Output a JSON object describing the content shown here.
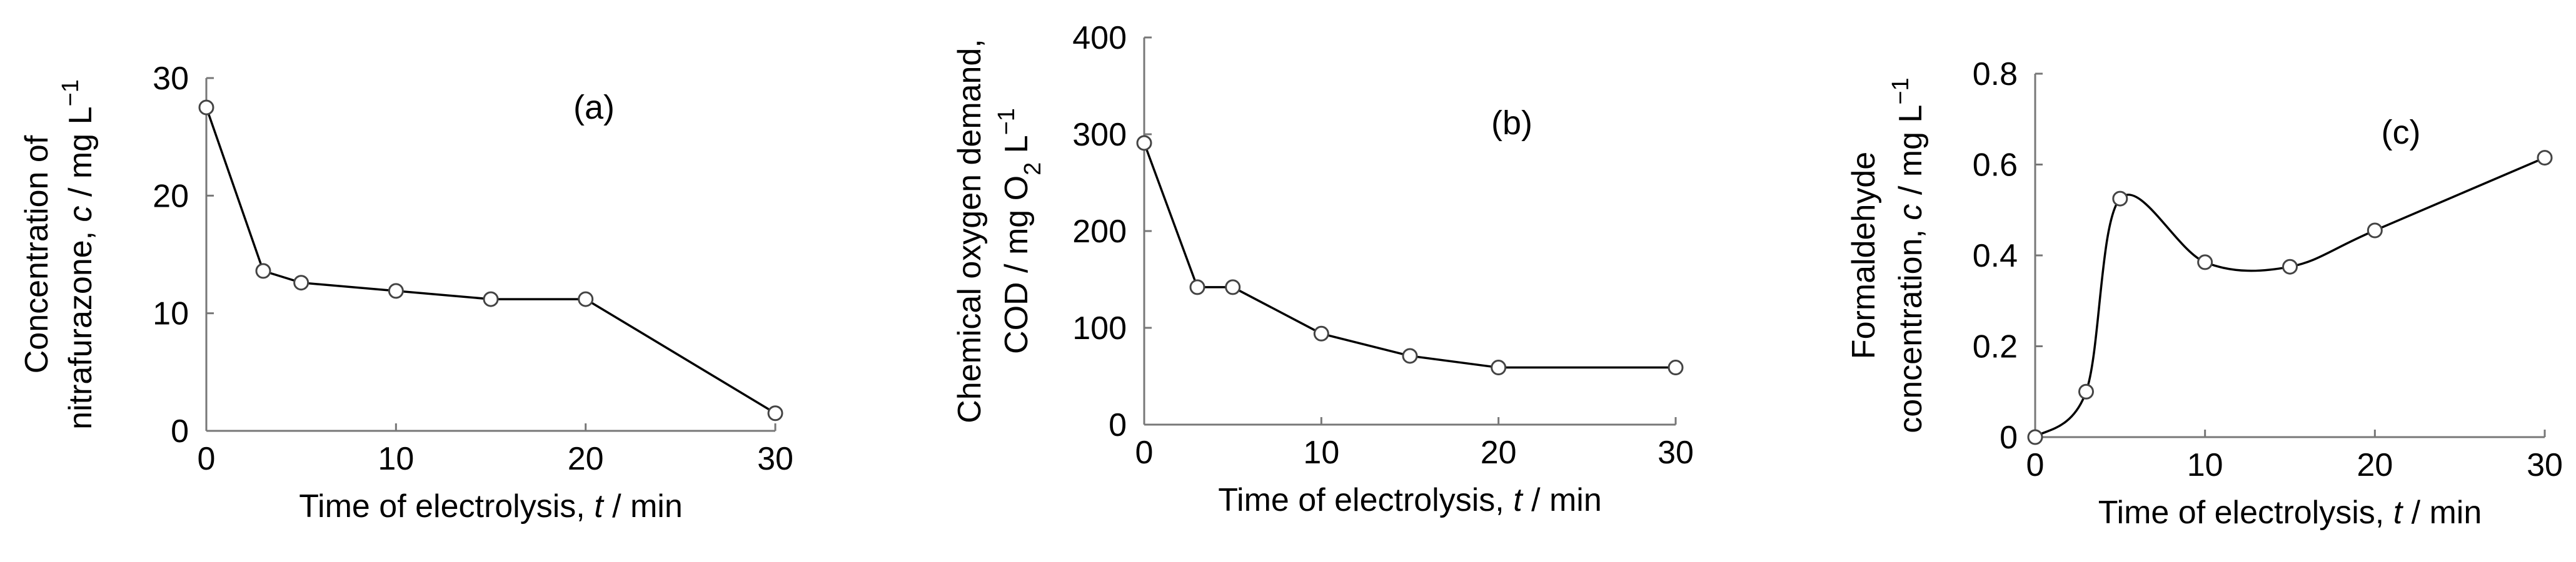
{
  "chart_data": [
    {
      "type": "line",
      "panel_label": "(a)",
      "xlabel": "Time of electrolysis, ",
      "xlabel_var": "t",
      "xlabel_unit": " / min",
      "ylabel_line1": "Concentration of",
      "ylabel_line2_pre": "nitrafurazone, ",
      "ylabel_line2_var": "c",
      "ylabel_line2_unit": " / mg L",
      "ylabel_line2_sup": "−1",
      "xlim": [
        0,
        30
      ],
      "ylim": [
        0,
        30
      ],
      "xticks": [
        "0",
        "10",
        "20",
        "30"
      ],
      "yticks": [
        "0",
        "10",
        "20",
        "30"
      ],
      "x": [
        0,
        3,
        5,
        10,
        15,
        20,
        30
      ],
      "y": [
        27.5,
        13.6,
        12.6,
        11.9,
        11.2,
        11.2,
        1.5
      ],
      "smooth": false,
      "grid": false
    },
    {
      "type": "line",
      "panel_label": "(b)",
      "xlabel": "Time of electrolysis, ",
      "xlabel_var": "t",
      "xlabel_unit": " / min",
      "ylabel_line1": "Chemical oxygen demand,",
      "ylabel_line2_pre": "COD / mg O",
      "ylabel_line2_sub": "2",
      "ylabel_line2_unit": " L",
      "ylabel_line2_sup": "−1",
      "xlim": [
        0,
        30
      ],
      "ylim": [
        0,
        400
      ],
      "xticks": [
        "0",
        "10",
        "20",
        "30"
      ],
      "yticks": [
        "0",
        "100",
        "200",
        "300",
        "400"
      ],
      "x": [
        0,
        3,
        5,
        10,
        15,
        20,
        30
      ],
      "y": [
        291,
        142,
        142,
        94,
        71,
        59,
        59
      ],
      "smooth": false,
      "grid": false
    },
    {
      "type": "line",
      "panel_label": "(c)",
      "xlabel": "Time of electrolysis, ",
      "xlabel_var": "t",
      "xlabel_unit": " / min",
      "ylabel_line1": "Formaldehyde",
      "ylabel_line2_pre": "concentration, ",
      "ylabel_line2_var": "c",
      "ylabel_line2_unit": " / mg L",
      "ylabel_line2_sup": "−1",
      "xlim": [
        0,
        30
      ],
      "ylim": [
        0,
        0.8
      ],
      "xticks": [
        "0",
        "10",
        "20",
        "30"
      ],
      "yticks": [
        "0",
        "0.2",
        "0.4",
        "0.6",
        "0.8"
      ],
      "x": [
        0,
        3,
        5,
        10,
        15,
        20,
        30
      ],
      "y": [
        0.0,
        0.1,
        0.525,
        0.385,
        0.375,
        0.455,
        0.615
      ],
      "smooth": true,
      "grid": false
    }
  ]
}
